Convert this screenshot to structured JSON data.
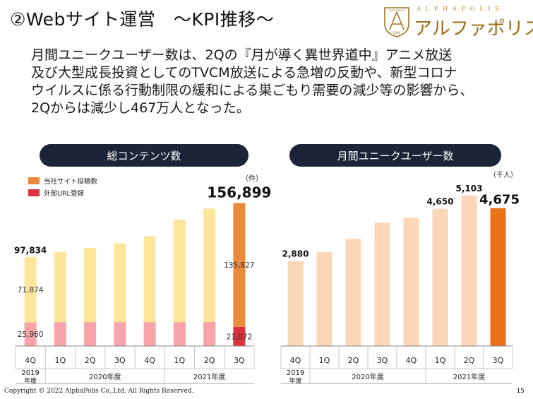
{
  "header": {
    "title": "②Webサイト運営　～KPI推移～",
    "logo_top": "ALPHAPOLIS",
    "logo_name": "アルファポリス",
    "logo_crest_lines": [
      "ALPHAPOLIS",
      "2000"
    ]
  },
  "summary_lines": [
    "月間ユニークユーザー数は、2Qの『月が導く異世界道中』アニメ放送",
    "及び大型成長投資としてのTVCM放送による急増の反動や、新型コロナ",
    "ウイルスに係る行動制限の緩和による巣ごもり需要の減少等の影響から、",
    "2Qからは減少し467万人となった。"
  ],
  "footer": {
    "copyright": "Copyright © 2022 AlphaPolis Co.,Ltd.  All Rights Reserved.",
    "page": "15"
  },
  "colors": {
    "pill_bg": "#1c2538",
    "content_past": "#fde59a",
    "content_current": "#ec8a3c",
    "url_past": "#f7a3a8",
    "url_current": "#d9333f",
    "users_past": "#fad7b6",
    "users_current": "#e9711c"
  },
  "chart_data": [
    {
      "type": "bar",
      "title": "総コンテンツ数",
      "unit": "（件）",
      "legend": [
        "当社サイト投稿数",
        "外部URL登録"
      ],
      "legend_position": "top-left",
      "categories": [
        "4Q",
        "1Q",
        "2Q",
        "3Q",
        "4Q",
        "1Q",
        "2Q",
        "3Q"
      ],
      "year_groups": [
        {
          "label": "2019\n年度",
          "span": 1
        },
        {
          "label": "2020年度",
          "span": 4
        },
        {
          "label": "2021年度",
          "span": 3
        }
      ],
      "totals": [
        97834,
        103200,
        107700,
        112600,
        120600,
        138600,
        150700,
        156899
      ],
      "series": [
        {
          "name": "当社サイト投稿数",
          "values": [
            71874,
            77000,
            81500,
            86400,
            94400,
            112400,
            124400,
            135827
          ]
        },
        {
          "name": "外部URL登録",
          "values": [
            25960,
            26200,
            26200,
            26200,
            26200,
            26200,
            26300,
            21072
          ]
        }
      ],
      "data_labels": {
        "total_first": "97,834",
        "total_last": "156,899",
        "site_first": "71,874",
        "site_last": "135,827",
        "url_first": "25,960",
        "url_last": "21,072"
      },
      "ylim": [
        0,
        165000
      ],
      "grid": false
    },
    {
      "type": "bar",
      "title": "月間ユニークユーザー数",
      "unit": "（千人）",
      "categories": [
        "4Q",
        "1Q",
        "2Q",
        "3Q",
        "4Q",
        "1Q",
        "2Q",
        "3Q"
      ],
      "year_groups": [
        {
          "label": "2019\n年度",
          "span": 1
        },
        {
          "label": "2020年度",
          "span": 4
        },
        {
          "label": "2021年度",
          "span": 3
        }
      ],
      "values": [
        2880,
        3180,
        3630,
        4170,
        4350,
        4650,
        5103,
        4675
      ],
      "data_labels": [
        "2,880",
        "",
        "",
        "",
        "",
        "4,650",
        "5,103",
        "4,675"
      ],
      "ylim": [
        0,
        5600
      ],
      "grid": false
    }
  ]
}
